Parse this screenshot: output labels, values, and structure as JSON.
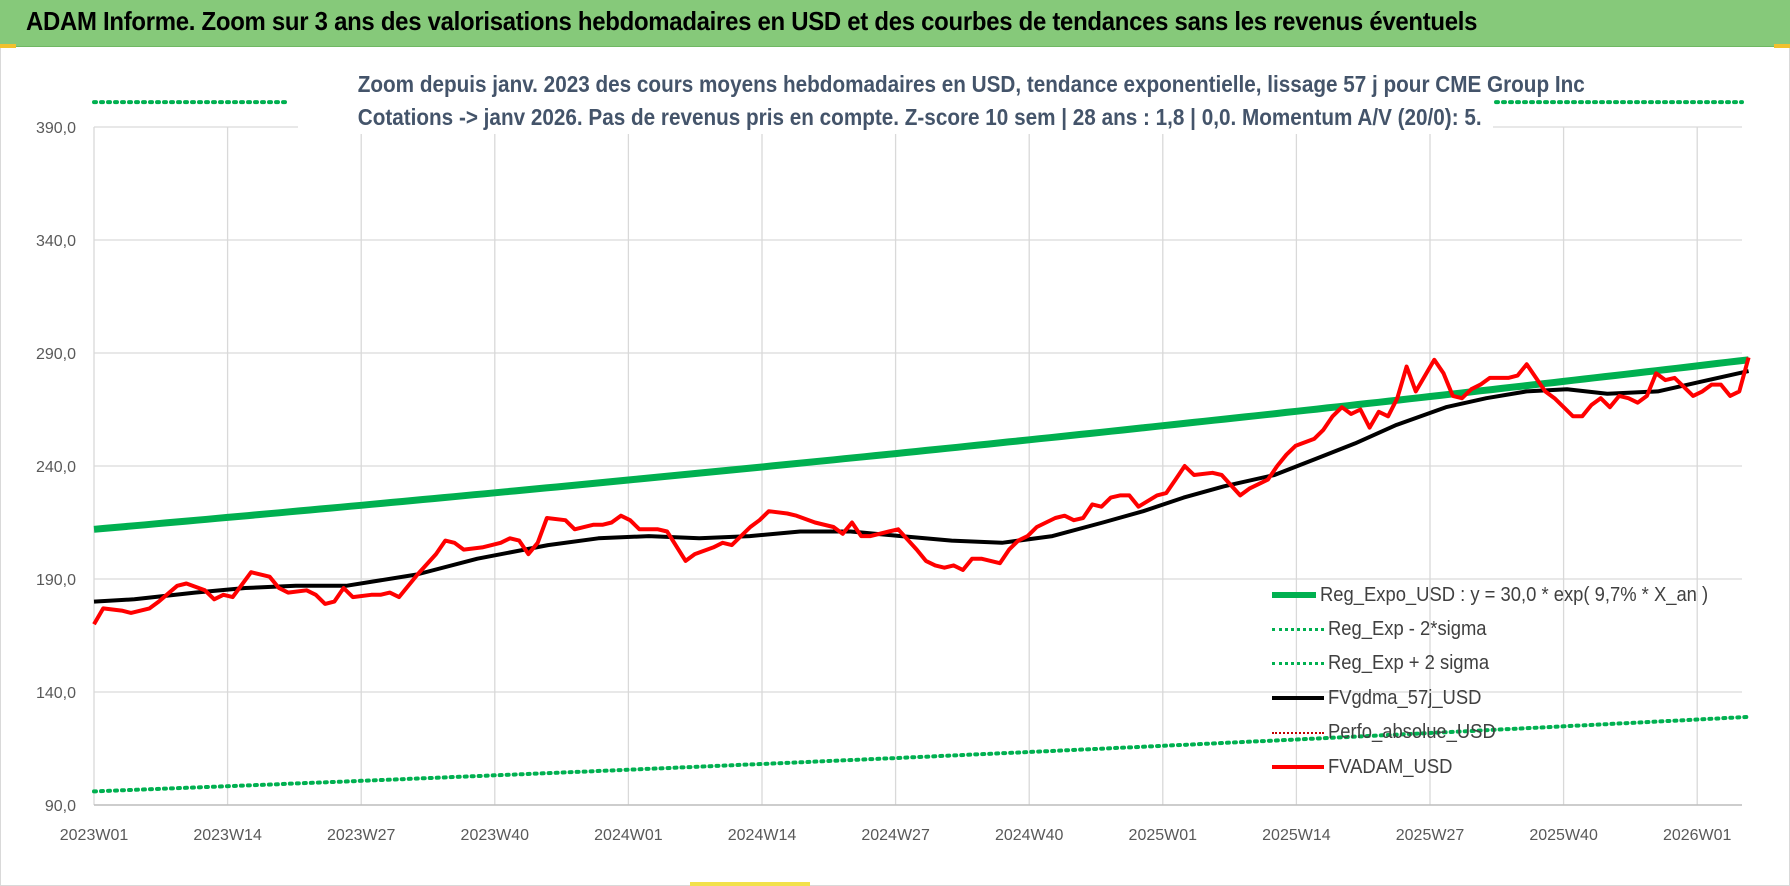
{
  "header": {
    "title": "ADAM Informe. Zoom sur 3 ans des valorisations hebdomadaires en USD et des courbes de tendances sans les revenus éventuels"
  },
  "colors": {
    "header_bg": "#86c97a",
    "trend_green": "#00b050",
    "gdma_black": "#000000",
    "price_red": "#ff0000",
    "perfo_red": "#c00000",
    "grid": "#d9d9d9",
    "title_text": "#44546a"
  },
  "chart_data": {
    "type": "line",
    "title_line1": "Zoom depuis janv. 2023 des cours moyens hebdomadaires en USD, tendance exponentielle, lissage 57 j pour CME Group Inc",
    "title_line2": "Cotations -> janv 2026. Pas de revenus pris en compte. Z-score 10 sem | 28 ans : 1,8 | 0,0. Momentum A/V (20/0): 5.",
    "xlabel": "",
    "ylabel": "",
    "ylim": [
      90,
      390
    ],
    "y_ticks": [
      "90,0",
      "140,0",
      "190,0",
      "240,0",
      "290,0",
      "340,0",
      "390,0"
    ],
    "x_tick_labels": [
      "2023W01",
      "2023W14",
      "2023W27",
      "2023W40",
      "2024W01",
      "2024W14",
      "2024W27",
      "2024W40",
      "2025W01",
      "2025W14",
      "2025W27",
      "2025W40",
      "2026W01"
    ],
    "x_range_weeks": [
      0,
      164
    ],
    "grid": true,
    "legend_position": "bottom-right",
    "series": [
      {
        "name": "Reg_Expo_USD : y = 30,0 * exp( 9,7% *  X_an )",
        "style": "solid-thick",
        "color": "#00b050",
        "endpoints": [
          212,
          287
        ]
      },
      {
        "name": "Reg_Exp - 2*sigma",
        "style": "dotted",
        "color": "#00b050",
        "endpoints": [
          96,
          129
        ]
      },
      {
        "name": "Reg_Exp + 2 sigma",
        "style": "dotted",
        "color": "#00b050",
        "endpoints": [
          401,
          401
        ]
      },
      {
        "name": "FVgdma_57j_USD",
        "style": "solid",
        "color": "#000000",
        "points": [
          [
            0,
            180
          ],
          [
            4,
            181
          ],
          [
            10,
            184
          ],
          [
            15,
            186
          ],
          [
            20,
            187
          ],
          [
            25,
            187
          ],
          [
            32,
            192
          ],
          [
            38,
            199
          ],
          [
            45,
            205
          ],
          [
            50,
            208
          ],
          [
            55,
            209
          ],
          [
            60,
            208
          ],
          [
            65,
            209
          ],
          [
            70,
            211
          ],
          [
            75,
            211
          ],
          [
            80,
            209
          ],
          [
            85,
            207
          ],
          [
            90,
            206
          ],
          [
            95,
            209
          ],
          [
            100,
            215
          ],
          [
            104,
            220
          ],
          [
            108,
            226
          ],
          [
            112,
            231
          ],
          [
            117,
            236
          ],
          [
            121,
            243
          ],
          [
            125,
            250
          ],
          [
            129,
            258
          ],
          [
            134,
            266
          ],
          [
            138,
            270
          ],
          [
            142,
            273
          ],
          [
            146,
            274
          ],
          [
            150,
            272
          ],
          [
            155,
            273
          ],
          [
            160,
            278
          ],
          [
            164,
            282
          ]
        ]
      },
      {
        "name": "Perfo_absolue_USD",
        "style": "dotted",
        "color": "#c00000"
      },
      {
        "name": "FVADAM_USD",
        "style": "solid",
        "color": "#ff0000",
        "points": [
          [
            0,
            170
          ],
          [
            1,
            177
          ],
          [
            3,
            176
          ],
          [
            4,
            175
          ],
          [
            6,
            177
          ],
          [
            7,
            180
          ],
          [
            9,
            187
          ],
          [
            10,
            188
          ],
          [
            12,
            185
          ],
          [
            13,
            181
          ],
          [
            14,
            183
          ],
          [
            15,
            182
          ],
          [
            17,
            193
          ],
          [
            19,
            191
          ],
          [
            20,
            186
          ],
          [
            21,
            184
          ],
          [
            23,
            185
          ],
          [
            24,
            183
          ],
          [
            25,
            179
          ],
          [
            26,
            180
          ],
          [
            27,
            186
          ],
          [
            28,
            182
          ],
          [
            30,
            183
          ],
          [
            31,
            183
          ],
          [
            32,
            184
          ],
          [
            33,
            182
          ],
          [
            35,
            192
          ],
          [
            37,
            201
          ],
          [
            38,
            207
          ],
          [
            39,
            206
          ],
          [
            40,
            203
          ],
          [
            42,
            204
          ],
          [
            44,
            206
          ],
          [
            45,
            208
          ],
          [
            46,
            207
          ],
          [
            47,
            201
          ],
          [
            48,
            206
          ],
          [
            49,
            217
          ],
          [
            51,
            216
          ],
          [
            52,
            212
          ],
          [
            54,
            214
          ],
          [
            55,
            214
          ],
          [
            56,
            215
          ],
          [
            57,
            218
          ],
          [
            58,
            216
          ],
          [
            59,
            212
          ],
          [
            61,
            212
          ],
          [
            62,
            211
          ],
          [
            64,
            198
          ],
          [
            65,
            201
          ],
          [
            67,
            204
          ],
          [
            68,
            206
          ],
          [
            69,
            205
          ],
          [
            71,
            213
          ],
          [
            72,
            216
          ],
          [
            73,
            220
          ],
          [
            75,
            219
          ],
          [
            76,
            218
          ],
          [
            78,
            215
          ],
          [
            80,
            213
          ],
          [
            81,
            210
          ],
          [
            82,
            215
          ],
          [
            83,
            209
          ],
          [
            84,
            209
          ],
          [
            86,
            211
          ],
          [
            87,
            212
          ],
          [
            89,
            203
          ],
          [
            90,
            198
          ],
          [
            91,
            196
          ],
          [
            92,
            195
          ],
          [
            93,
            196
          ],
          [
            94,
            194
          ],
          [
            95,
            199
          ],
          [
            96,
            199
          ],
          [
            98,
            197
          ],
          [
            99,
            203
          ],
          [
            100,
            207
          ],
          [
            101,
            209
          ],
          [
            102,
            213
          ],
          [
            104,
            217
          ],
          [
            105,
            218
          ],
          [
            106,
            216
          ],
          [
            107,
            217
          ],
          [
            108,
            223
          ],
          [
            109,
            222
          ],
          [
            110,
            226
          ],
          [
            111,
            227
          ],
          [
            112,
            227
          ],
          [
            113,
            222
          ],
          [
            115,
            227
          ],
          [
            116,
            228
          ],
          [
            117,
            234
          ],
          [
            118,
            240
          ],
          [
            119,
            236
          ],
          [
            121,
            237
          ],
          [
            122,
            236
          ],
          [
            124,
            227
          ],
          [
            125,
            230
          ],
          [
            127,
            234
          ],
          [
            128,
            240
          ],
          [
            129,
            245
          ],
          [
            130,
            249
          ],
          [
            132,
            252
          ],
          [
            133,
            256
          ],
          [
            134,
            262
          ],
          [
            135,
            266
          ],
          [
            136,
            263
          ],
          [
            137,
            265
          ],
          [
            138,
            257
          ],
          [
            139,
            264
          ],
          [
            140,
            262
          ],
          [
            141,
            270
          ],
          [
            142,
            284
          ],
          [
            143,
            273
          ],
          [
            145,
            287
          ],
          [
            146,
            281
          ],
          [
            147,
            271
          ],
          [
            148,
            270
          ],
          [
            149,
            274
          ],
          [
            150,
            276
          ],
          [
            151,
            279
          ],
          [
            152,
            279
          ],
          [
            153,
            279
          ],
          [
            154,
            280
          ],
          [
            155,
            285
          ],
          [
            156,
            279
          ],
          [
            157,
            273
          ],
          [
            158,
            270
          ],
          [
            159,
            266
          ],
          [
            160,
            262
          ],
          [
            161,
            262
          ],
          [
            162,
            267
          ],
          [
            163,
            270
          ],
          [
            164,
            266
          ],
          [
            165,
            271
          ],
          [
            166,
            270
          ],
          [
            167,
            268
          ],
          [
            168,
            271
          ],
          [
            169,
            281
          ],
          [
            170,
            278
          ],
          [
            171,
            279
          ],
          [
            172,
            275
          ],
          [
            173,
            271
          ],
          [
            174,
            273
          ],
          [
            175,
            276
          ],
          [
            176,
            276
          ],
          [
            177,
            271
          ],
          [
            178,
            273
          ],
          [
            179,
            288
          ]
        ]
      }
    ]
  }
}
